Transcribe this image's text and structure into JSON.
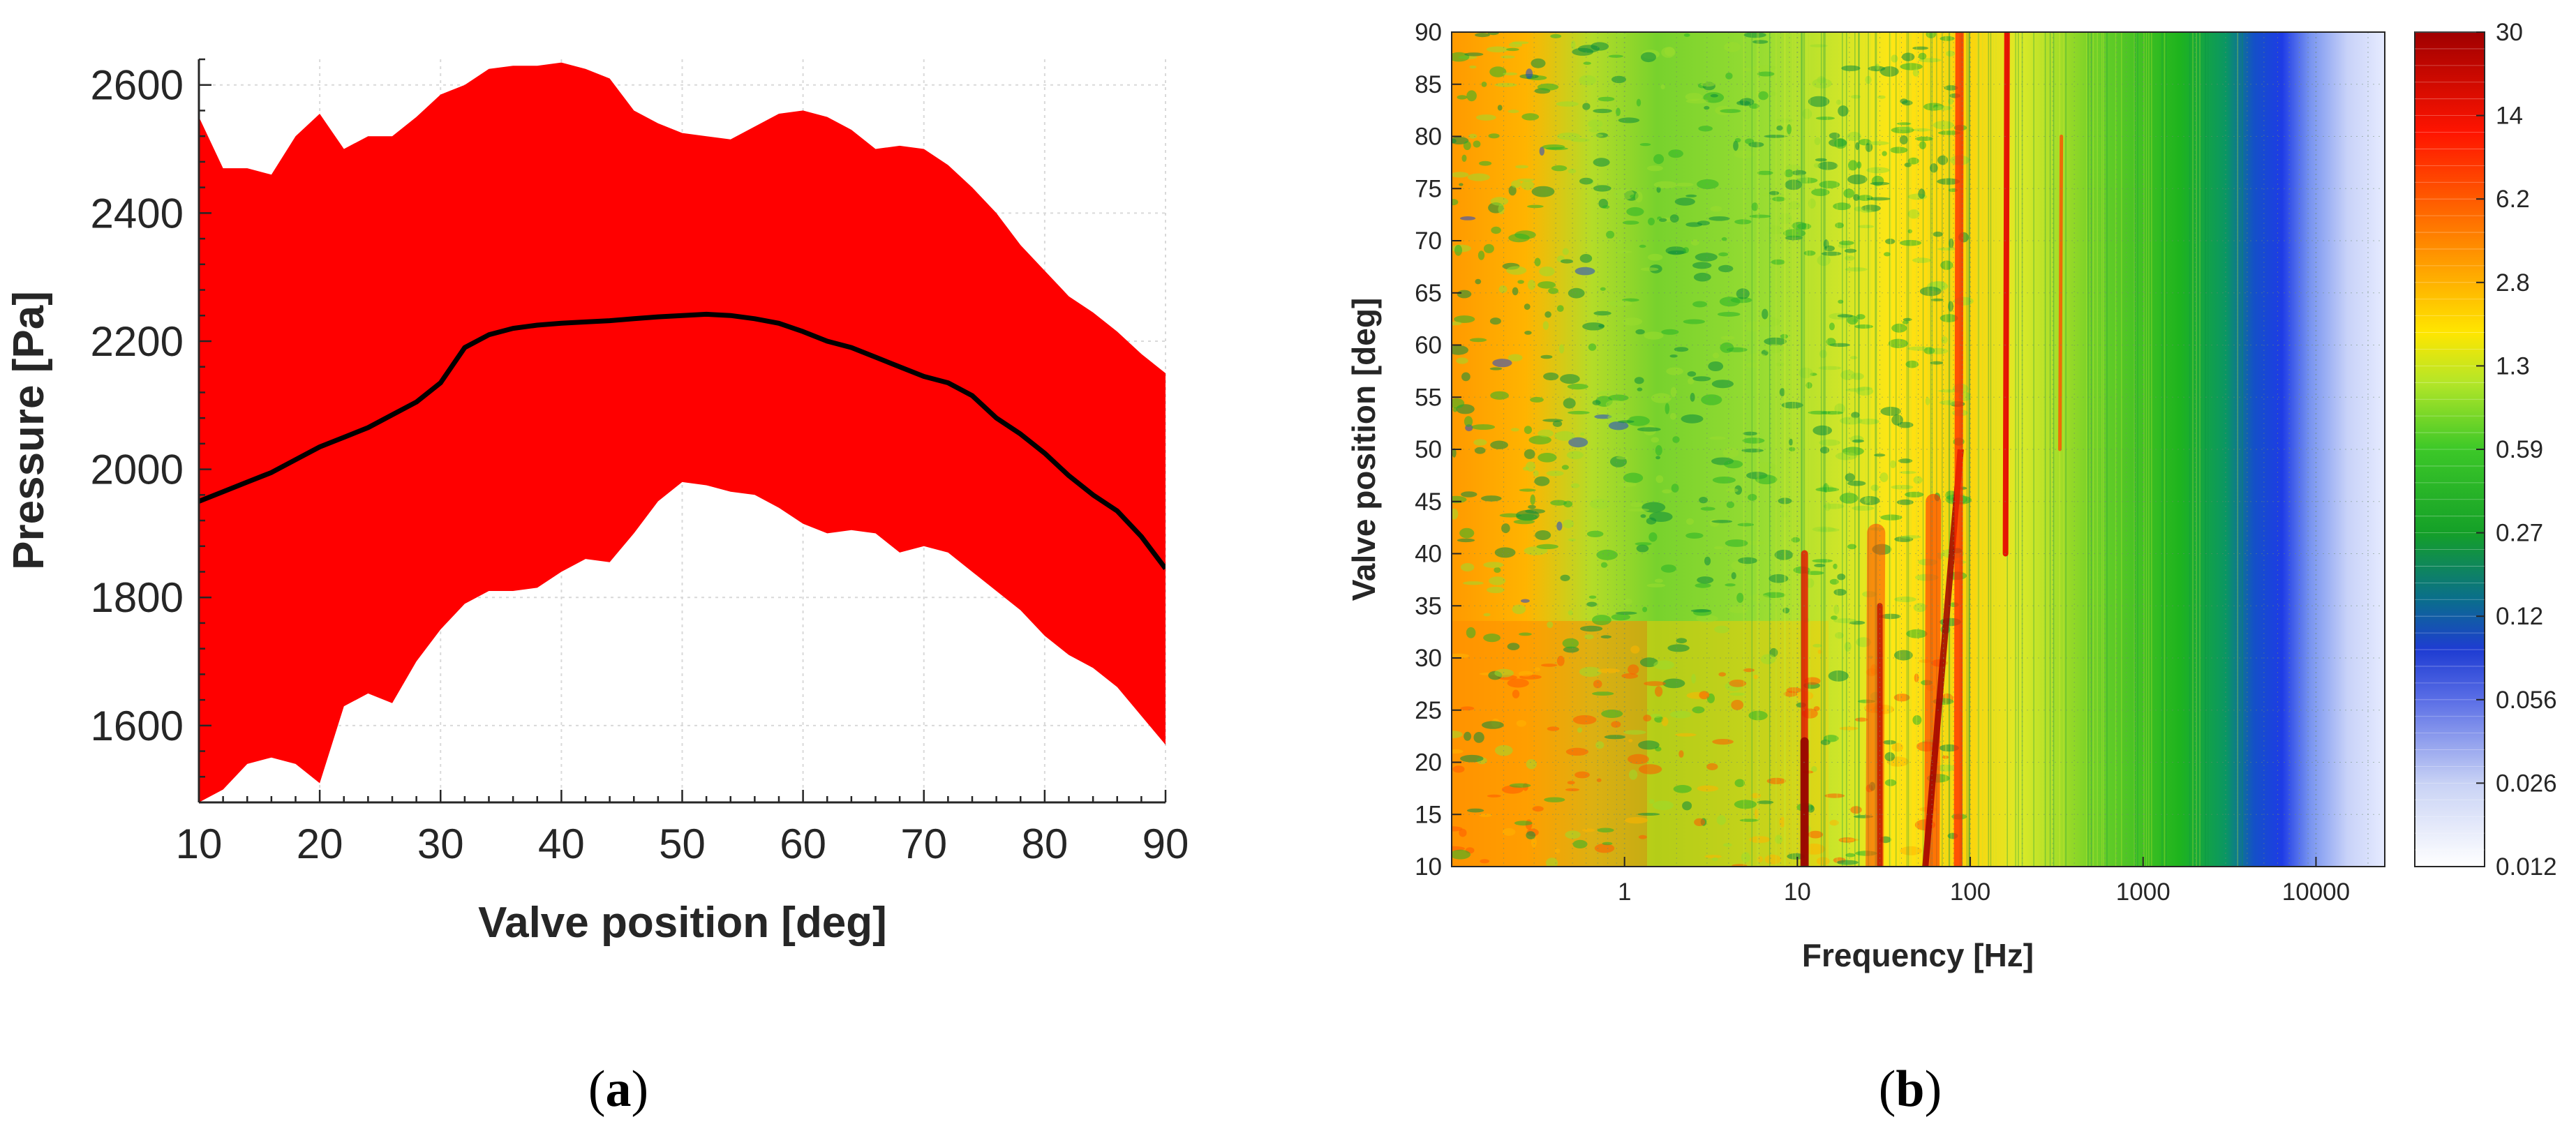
{
  "chart_data": [
    {
      "type": "area",
      "panel": "a",
      "xlabel": "Valve position [deg]",
      "ylabel": "Pressure [Pa]",
      "xlim": [
        10,
        90
      ],
      "ylim": [
        1480,
        2640
      ],
      "xticks": [
        10,
        20,
        30,
        40,
        50,
        60,
        70,
        80,
        90
      ],
      "yticks": [
        1600,
        1800,
        2000,
        2200,
        2400,
        2600
      ],
      "grid": true,
      "band_color": "#ff0000",
      "line_color": "#000000",
      "x": [
        10,
        12,
        14,
        16,
        18,
        20,
        22,
        24,
        26,
        28,
        30,
        32,
        34,
        36,
        38,
        40,
        42,
        44,
        46,
        48,
        50,
        52,
        54,
        56,
        58,
        60,
        62,
        64,
        66,
        68,
        70,
        72,
        74,
        76,
        78,
        80,
        82,
        84,
        86,
        88,
        90
      ],
      "series": [
        {
          "name": "upper",
          "values": [
            2550,
            2470,
            2470,
            2460,
            2520,
            2555,
            2500,
            2520,
            2520,
            2550,
            2585,
            2600,
            2625,
            2630,
            2630,
            2635,
            2625,
            2610,
            2560,
            2540,
            2525,
            2520,
            2515,
            2535,
            2555,
            2560,
            2550,
            2530,
            2500,
            2505,
            2500,
            2475,
            2440,
            2400,
            2350,
            2310,
            2270,
            2245,
            2215,
            2180,
            2150
          ]
        },
        {
          "name": "mean",
          "values": [
            1950,
            1965,
            1980,
            1995,
            2015,
            2035,
            2050,
            2065,
            2085,
            2105,
            2135,
            2190,
            2210,
            2220,
            2225,
            2228,
            2230,
            2232,
            2235,
            2238,
            2240,
            2242,
            2240,
            2235,
            2228,
            2215,
            2200,
            2190,
            2175,
            2160,
            2145,
            2135,
            2115,
            2080,
            2055,
            2025,
            1990,
            1960,
            1935,
            1895,
            1845
          ]
        },
        {
          "name": "lower",
          "values": [
            1480,
            1500,
            1540,
            1550,
            1540,
            1510,
            1630,
            1650,
            1635,
            1700,
            1750,
            1790,
            1810,
            1810,
            1815,
            1840,
            1860,
            1855,
            1900,
            1950,
            1980,
            1975,
            1965,
            1960,
            1940,
            1915,
            1900,
            1905,
            1900,
            1870,
            1880,
            1870,
            1840,
            1810,
            1780,
            1740,
            1710,
            1690,
            1660,
            1615,
            1570
          ]
        }
      ],
      "panel_label": {
        "open": "(",
        "letter": "a",
        "close": ")"
      }
    },
    {
      "type": "heatmap",
      "panel": "b",
      "xlabel": "Frequency [Hz]",
      "ylabel": "Valve position [deg]",
      "xscale": "log",
      "xlim": [
        0.1,
        25000
      ],
      "ylim": [
        10,
        90
      ],
      "xticks": [
        1,
        10,
        100,
        1000,
        10000
      ],
      "xtick_labels": [
        "1",
        "10",
        "100",
        "1000",
        "10000"
      ],
      "yticks": [
        10,
        15,
        20,
        25,
        30,
        35,
        40,
        45,
        50,
        55,
        60,
        65,
        70,
        75,
        80,
        85,
        90
      ],
      "colorbar_ticks": [
        "0.012",
        "0.026",
        "0.056",
        "0.12",
        "0.27",
        "0.59",
        "1.3",
        "2.8",
        "6.2",
        "14",
        "30"
      ],
      "colorbar_scale": "log",
      "colorbar_range": [
        0.012,
        30
      ],
      "colormap": [
        "#ffffff",
        "#c8d2f5",
        "#8c9cf0",
        "#1e3cd2",
        "#0a8296",
        "#14b414",
        "#5ac832",
        "#c8e628",
        "#ffdc00",
        "#ffa000",
        "#ff5a00",
        "#ff0000",
        "#a00000"
      ],
      "description_rows_low": "y 10-31: strong energy below 1 Hz and peaks near 11, 30, 60-85 Hz",
      "peak_lines_hz": [
        11,
        28,
        60,
        85,
        160,
        330
      ],
      "panel_label": {
        "open": "(",
        "letter": "b",
        "close": ")"
      }
    }
  ]
}
